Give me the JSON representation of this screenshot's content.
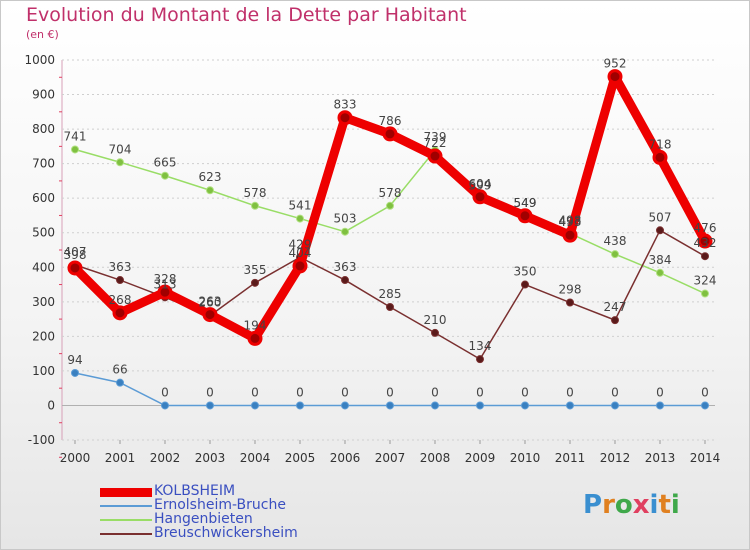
{
  "title": "Evolution du Montant de la Dette par Habitant",
  "subtitle": "(en €)",
  "logo": {
    "letters": [
      "P",
      "r",
      "o",
      "x",
      "i",
      "t",
      "i"
    ],
    "colors": [
      "#3a8fd0",
      "#e08020",
      "#3fa84a",
      "#e04060",
      "#3a8fd0",
      "#e08020",
      "#3fa84a"
    ]
  },
  "chart_data": {
    "type": "line",
    "x": [
      "2000",
      "2001",
      "2002",
      "2003",
      "2004",
      "2005",
      "2006",
      "2007",
      "2008",
      "2009",
      "2010",
      "2011",
      "2012",
      "2013",
      "2014"
    ],
    "ylim": [
      -100,
      1000
    ],
    "yticks": [
      "-100",
      "0",
      "100",
      "200",
      "300",
      "400",
      "500",
      "600",
      "700",
      "800",
      "900",
      "1000"
    ],
    "grid": "horizontal dotted",
    "legend_position": "bottom-left",
    "series": [
      {
        "name": "KOLBSHEIM",
        "color": "#ee0000",
        "values": [
          398,
          268,
          328,
          263,
          194,
          404,
          833,
          786,
          722,
          604,
          549,
          493,
          952,
          718,
          476
        ],
        "labels": [
          "398",
          "268",
          "328",
          "263",
          "194",
          "404",
          "833",
          "786",
          "722",
          "604",
          "549",
          "493",
          "952",
          "718",
          "476"
        ]
      },
      {
        "name": "Ernolsheim-Bruche",
        "color": "#5b9bd5",
        "values": [
          94,
          66,
          0,
          0,
          0,
          0,
          0,
          0,
          0,
          0,
          0,
          0,
          0,
          0,
          0
        ],
        "labels": [
          "94",
          "66",
          "0",
          "0",
          "0",
          "0",
          "0",
          "0",
          "0",
          "0",
          "0",
          "0",
          "0",
          "0",
          "0"
        ]
      },
      {
        "name": "Hangenbieten",
        "color": "#99dd66",
        "values": [
          741,
          704,
          665,
          623,
          578,
          541,
          503,
          578,
          739,
          599,
          549,
          498,
          438,
          384,
          324
        ],
        "labels": [
          "741",
          "704",
          "665",
          "623",
          "578",
          "541",
          "503",
          "578",
          "739",
          "599",
          "549",
          "498",
          "438",
          "384",
          "324"
        ]
      },
      {
        "name": "Breuschwickersheim",
        "color": "#7a3030",
        "values": [
          407,
          363,
          313,
          260,
          355,
          429,
          363,
          285,
          210,
          134,
          350,
          298,
          247,
          507,
          432
        ],
        "labels": [
          "407",
          "363",
          "313",
          "260",
          "355",
          "429",
          "363",
          "285",
          "210",
          "134",
          "350",
          "298",
          "247",
          "507",
          "432"
        ]
      }
    ]
  }
}
